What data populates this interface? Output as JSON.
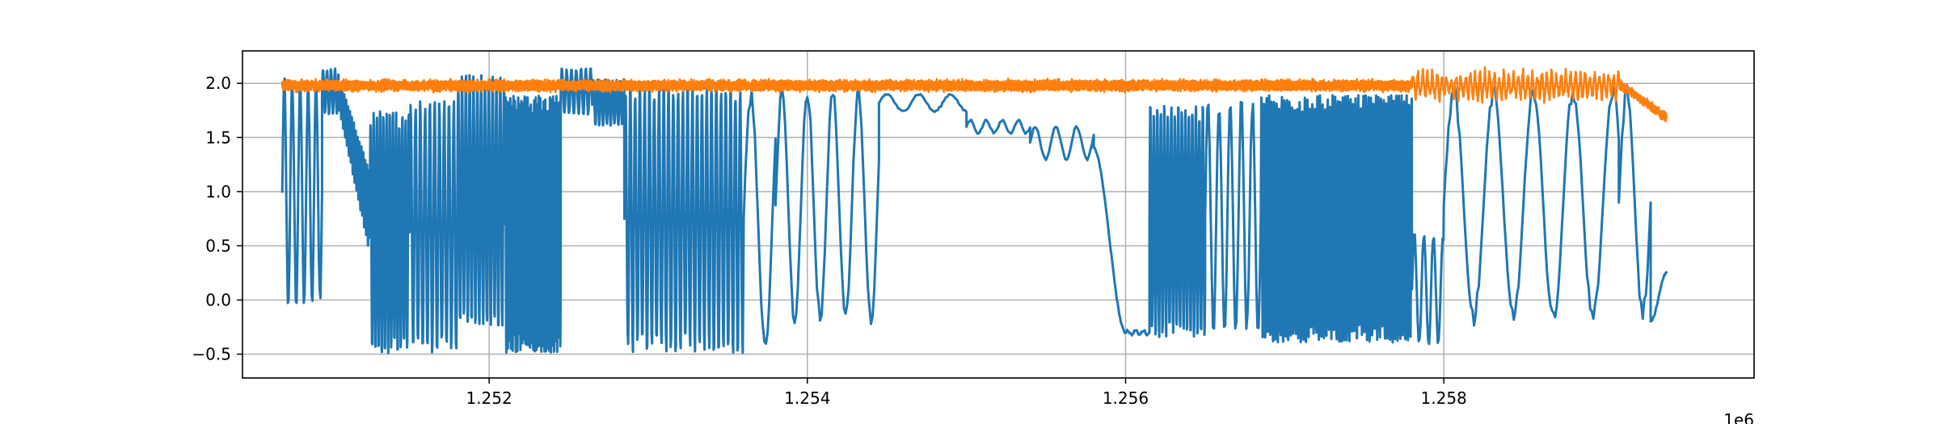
{
  "chart_data": {
    "type": "line",
    "title": "",
    "xlabel": "",
    "ylabel": "",
    "x_offset_label": "1e6",
    "xlim": [
      1250450,
      1259950
    ],
    "ylim": [
      -0.72,
      2.3
    ],
    "x_ticks": [
      {
        "value": 1252000,
        "label": "1.252"
      },
      {
        "value": 1254000,
        "label": "1.254"
      },
      {
        "value": 1256000,
        "label": "1.256"
      },
      {
        "value": 1258000,
        "label": "1.258"
      }
    ],
    "y_ticks": [
      {
        "value": -0.5,
        "label": "−0.5"
      },
      {
        "value": 0.0,
        "label": "0.0"
      },
      {
        "value": 0.5,
        "label": "0.5"
      },
      {
        "value": 1.0,
        "label": "1.0"
      },
      {
        "value": 1.5,
        "label": "1.5"
      },
      {
        "value": 2.0,
        "label": "2.0"
      }
    ],
    "grid": true,
    "legend": "none",
    "series": [
      {
        "color": "#1f77b4",
        "x_range": [
          1250700,
          1259400
        ],
        "segments": [
          {
            "x0": 1250700,
            "x1": 1250950,
            "kind": "osc",
            "period": 50,
            "low": -0.1,
            "high": 2.1
          },
          {
            "x0": 1250950,
            "x1": 1251050,
            "kind": "osc",
            "period": 25,
            "low": 1.7,
            "high": 2.15
          },
          {
            "x0": 1251050,
            "x1": 1251250,
            "kind": "osc",
            "period": 12,
            "low_from": 1.8,
            "low_to": 0.4,
            "high_from": 2.1,
            "high_to": 1.2
          },
          {
            "x0": 1251250,
            "x1": 1251500,
            "kind": "osc",
            "period": 20,
            "low": -0.55,
            "high": 1.8
          },
          {
            "x0": 1251500,
            "x1": 1251800,
            "kind": "osc",
            "period": 30,
            "low": -0.55,
            "high": 1.9
          },
          {
            "x0": 1251800,
            "x1": 1252100,
            "kind": "osc",
            "period": 24,
            "low": -0.3,
            "high": 2.15
          },
          {
            "x0": 1252100,
            "x1": 1252450,
            "kind": "osc",
            "period": 10,
            "low": -0.55,
            "high": 1.95
          },
          {
            "x0": 1252450,
            "x1": 1252650,
            "kind": "osc",
            "period": 30,
            "low": 1.7,
            "high": 2.15
          },
          {
            "x0": 1252650,
            "x1": 1252850,
            "kind": "osc",
            "period": 24,
            "low": 1.6,
            "high": 2.05
          },
          {
            "x0": 1252850,
            "x1": 1253600,
            "kind": "osc",
            "period": 30,
            "low": -0.55,
            "high": 2.05
          },
          {
            "x0": 1253600,
            "x1": 1253800,
            "kind": "osc",
            "period": 180,
            "low": -0.5,
            "high": 2.0
          },
          {
            "x0": 1253800,
            "x1": 1254450,
            "kind": "osc",
            "period": 160,
            "low": -0.25,
            "high": 2.0
          },
          {
            "x0": 1254450,
            "x1": 1255000,
            "kind": "wave",
            "base": 1.82,
            "amp": 0.08,
            "period": 200
          },
          {
            "x0": 1255000,
            "x1": 1255400,
            "kind": "wave",
            "base": 1.6,
            "amp": 0.06,
            "period": 100
          },
          {
            "x0": 1255400,
            "x1": 1255800,
            "kind": "wave",
            "base": 1.45,
            "amp": 0.15,
            "period": 130
          },
          {
            "x0": 1255800,
            "x1": 1256000,
            "kind": "drop",
            "from": 1.4,
            "to": -0.3
          },
          {
            "x0": 1256000,
            "x1": 1256150,
            "kind": "wave",
            "base": -0.3,
            "amp": 0.02,
            "period": 50
          },
          {
            "x0": 1256150,
            "x1": 1256500,
            "kind": "osc",
            "period": 22,
            "low": -0.4,
            "high": 1.85
          },
          {
            "x0": 1256500,
            "x1": 1256850,
            "kind": "osc",
            "period": 70,
            "low": -0.35,
            "high": 1.9
          },
          {
            "x0": 1256850,
            "x1": 1257800,
            "kind": "osc",
            "period": 16,
            "low": -0.45,
            "high": 1.95
          },
          {
            "x0": 1257800,
            "x1": 1258000,
            "kind": "osc",
            "period": 60,
            "low": -0.45,
            "high": 0.65
          },
          {
            "x0": 1258000,
            "x1": 1259100,
            "kind": "osc",
            "period": 250,
            "low": -0.25,
            "high": 2.0
          },
          {
            "x0": 1259100,
            "x1": 1259300,
            "kind": "osc",
            "period": 200,
            "low": -0.2,
            "high": 2.0
          },
          {
            "x0": 1259300,
            "x1": 1259400,
            "kind": "drop",
            "from": -0.2,
            "to": 0.25
          }
        ]
      },
      {
        "color": "#ff7f0e",
        "x_range": [
          1250700,
          1259400
        ],
        "segments": [
          {
            "x0": 1250700,
            "x1": 1257800,
            "kind": "noise",
            "base": 1.98,
            "amp": 0.05,
            "period": 8
          },
          {
            "x0": 1257800,
            "x1": 1259100,
            "kind": "noise",
            "base": 1.98,
            "amp": 0.14,
            "period": 30
          },
          {
            "x0": 1259100,
            "x1": 1259400,
            "kind": "drop_noise",
            "from": 2.0,
            "to": 1.68,
            "amp": 0.05,
            "period": 8
          }
        ]
      }
    ]
  }
}
